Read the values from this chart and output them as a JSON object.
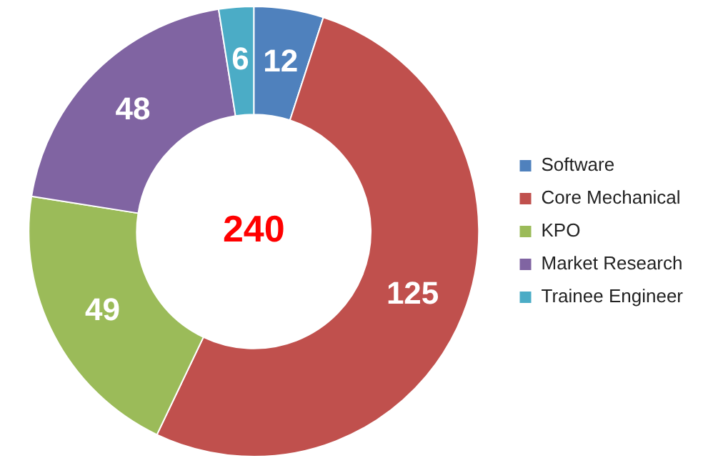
{
  "chart_data": {
    "type": "donut",
    "categories": [
      "Software",
      "Core Mechanical",
      "KPO",
      "Market Research",
      "Trainee Engineer"
    ],
    "values": [
      12,
      125,
      49,
      48,
      6
    ],
    "colors": [
      "#4f81bd",
      "#c0504d",
      "#9bbb59",
      "#8064a2",
      "#4bacc6"
    ],
    "data_labels": true,
    "legend": "right",
    "annotations": [
      "240"
    ]
  }
}
